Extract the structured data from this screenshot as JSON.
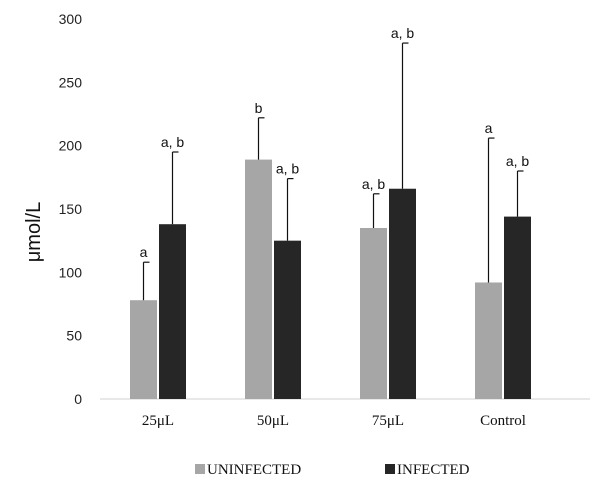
{
  "chart_data": {
    "type": "bar",
    "title": "",
    "xlabel": "",
    "ylabel": "μmol/L",
    "ylim": [
      0,
      300
    ],
    "yticks": [
      0,
      50,
      100,
      150,
      200,
      250,
      300
    ],
    "grid": false,
    "legend_position": "bottom",
    "categories": [
      "25μL",
      "50μL",
      "75μL",
      "Control"
    ],
    "series": [
      {
        "name": "UNINFECTED",
        "color": "#a6a6a6",
        "values": [
          78,
          189,
          135,
          92
        ],
        "error_upper": [
          108,
          222,
          162,
          206
        ],
        "labels": [
          "a",
          "b",
          "a, b",
          "a"
        ]
      },
      {
        "name": "INFECTED",
        "color": "#262626",
        "values": [
          138,
          125,
          166,
          144
        ],
        "error_upper": [
          195,
          174,
          281,
          180
        ],
        "labels": [
          "a, b",
          "a, b",
          "a, b",
          "a, b"
        ]
      }
    ]
  }
}
